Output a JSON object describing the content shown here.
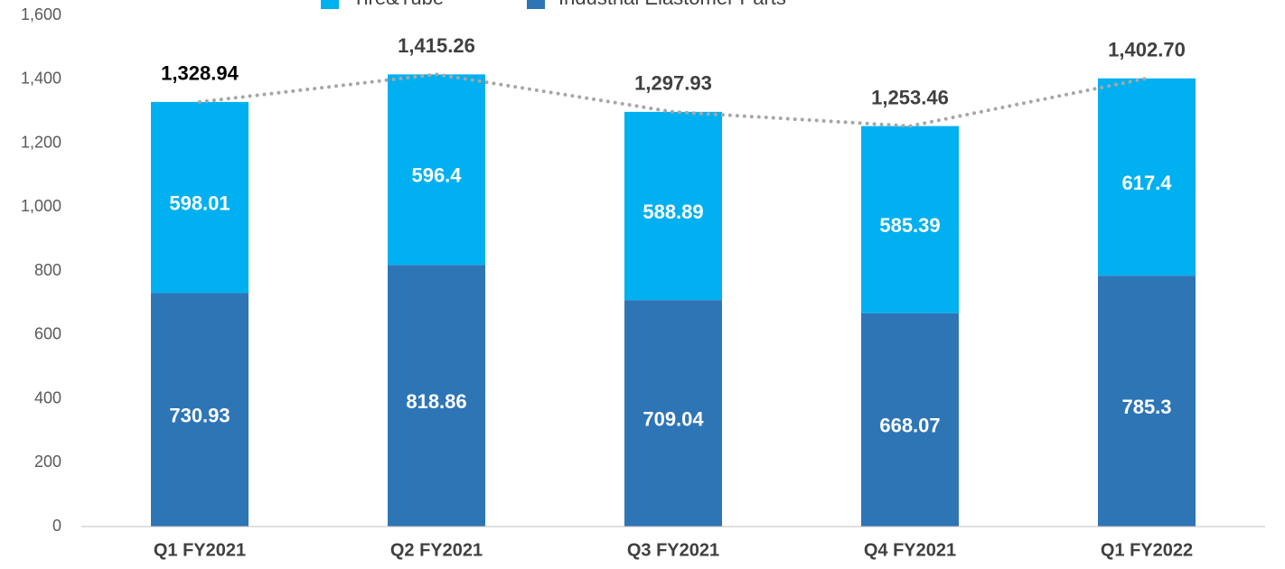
{
  "chart_data": {
    "type": "stacked_bar",
    "categories": [
      "Q1 FY2021",
      "Q2 FY2021",
      "Q3 FY2021",
      "Q4 FY2021",
      "Q1 FY2022"
    ],
    "series": [
      {
        "name": "Industrial Elastomer Parts",
        "color": "#2e75b6",
        "values": [
          730.93,
          818.86,
          709.04,
          668.07,
          785.3
        ]
      },
      {
        "name": "Tire&Tube",
        "color": "#00b0f0",
        "values": [
          598.01,
          596.4,
          588.89,
          585.39,
          617.4
        ]
      }
    ],
    "totals": {
      "color": "#a6a6a6",
      "values": [
        1328.94,
        1415.26,
        1297.93,
        1253.46,
        1402.7
      ],
      "value_labels": [
        "1,328.94",
        "1,415.26",
        "1,297.93",
        "1,253.46",
        "1,402.70"
      ]
    },
    "ylim": [
      0,
      1600
    ],
    "yticks": [
      0,
      200,
      400,
      600,
      800,
      {
        "value": 1000,
        "label": "1,000"
      },
      {
        "value": 1200,
        "label": "1,200"
      },
      {
        "value": 1400,
        "label": "1,400"
      },
      {
        "value": 1600,
        "label": "1,600"
      }
    ],
    "grid": false,
    "legend": "top"
  }
}
